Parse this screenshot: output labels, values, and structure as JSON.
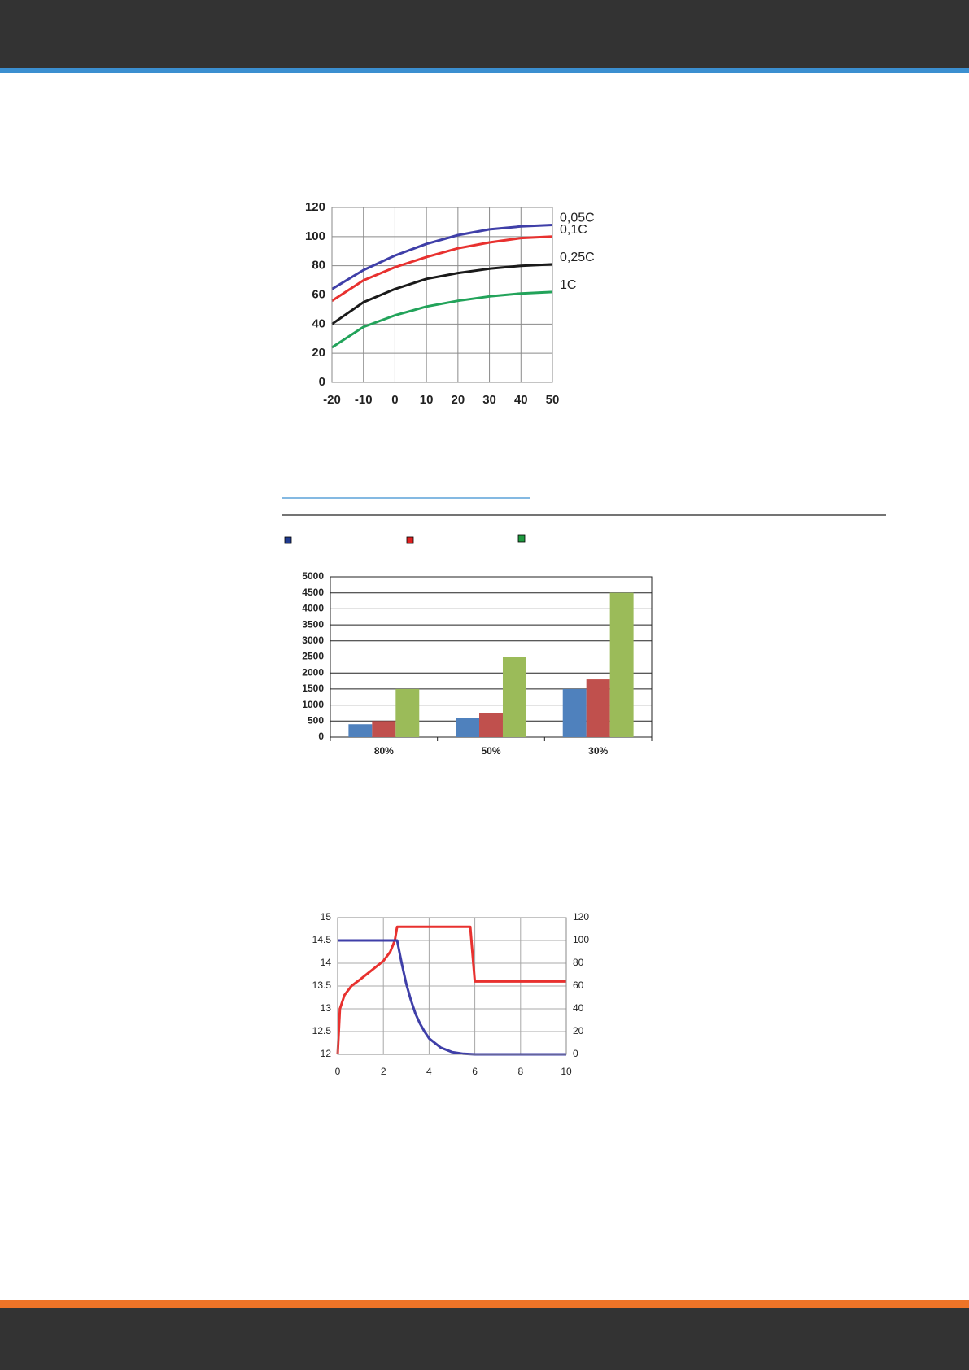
{
  "chart_data": [
    {
      "type": "line",
      "x": [
        -20,
        -10,
        0,
        10,
        20,
        30,
        40,
        50
      ],
      "xlim": [
        -20,
        50
      ],
      "xticks": [
        -20,
        -10,
        0,
        10,
        20,
        30,
        40,
        50
      ],
      "ylim": [
        0,
        120
      ],
      "yticks": [
        0,
        20,
        40,
        60,
        80,
        100,
        120
      ],
      "grid": true,
      "series": [
        {
          "name": "0,05C",
          "color": "#3f3fa8",
          "values": [
            64,
            77,
            87,
            95,
            101,
            105,
            107,
            108
          ]
        },
        {
          "name": "0,1C",
          "color": "#e8312f",
          "values": [
            56,
            70,
            79,
            86,
            92,
            96,
            99,
            100
          ]
        },
        {
          "name": "0,25C",
          "color": "#1a1a1a",
          "values": [
            40,
            55,
            64,
            71,
            75,
            78,
            80,
            81
          ]
        },
        {
          "name": "1C",
          "color": "#22a35a",
          "values": [
            24,
            38,
            46,
            52,
            56,
            59,
            61,
            62
          ]
        }
      ]
    },
    {
      "type": "bar",
      "categories": [
        "80%",
        "50%",
        "30%"
      ],
      "ylim": [
        0,
        5000
      ],
      "yticks": [
        0,
        500,
        1000,
        1500,
        2000,
        2500,
        3000,
        3500,
        4000,
        4500,
        5000
      ],
      "grid": true,
      "series": [
        {
          "color": "#4f81bd",
          "values": [
            400,
            600,
            1500
          ]
        },
        {
          "color": "#c0504d",
          "values": [
            500,
            750,
            1800
          ]
        },
        {
          "color": "#9bbb59",
          "values": [
            1500,
            2500,
            4500
          ]
        }
      ]
    },
    {
      "type": "line",
      "xlim": [
        0,
        10
      ],
      "xticks": [
        0,
        2,
        4,
        6,
        8,
        10
      ],
      "ylim": [
        12,
        15
      ],
      "yticks": [
        12,
        12.5,
        13,
        13.5,
        14,
        14.5,
        15
      ],
      "y2lim": [
        0,
        120
      ],
      "y2ticks": [
        0,
        20,
        40,
        60,
        80,
        100,
        120
      ],
      "grid": true,
      "series": [
        {
          "color": "#e8312f",
          "x": [
            0,
            0.1,
            0.3,
            0.6,
            1,
            1.5,
            2,
            2.3,
            2.5,
            2.6,
            5.8,
            6,
            10
          ],
          "values": [
            12,
            13,
            13.3,
            13.5,
            13.65,
            13.85,
            14.05,
            14.25,
            14.5,
            14.8,
            14.8,
            13.6,
            13.6
          ]
        },
        {
          "color": "#3f3fa8",
          "axis": "y2",
          "x": [
            0,
            2.6,
            2.8,
            3,
            3.2,
            3.4,
            3.6,
            3.8,
            4,
            4.5,
            5,
            5.5,
            6,
            10
          ],
          "values": [
            100,
            100,
            80,
            62,
            48,
            36,
            27,
            20,
            14,
            6,
            2,
            0.5,
            0,
            0
          ]
        }
      ]
    }
  ]
}
